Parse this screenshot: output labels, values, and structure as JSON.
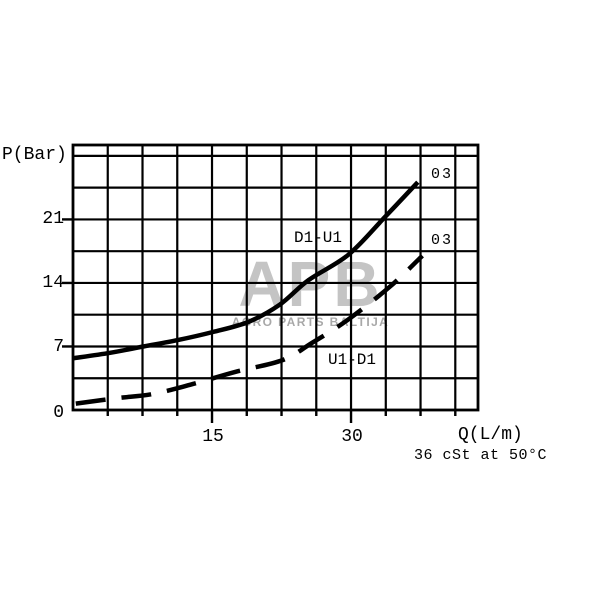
{
  "chart_data": {
    "type": "line",
    "title": "",
    "xlabel": "Q(L/m)",
    "xlabel_note": "36 cSt at 50°C",
    "ylabel": "P(Bar)",
    "xlim": [
      0,
      43.7
    ],
    "ylim": [
      0,
      29.2
    ],
    "x_gridline_step": 3.75,
    "y_gridline_step": 3.5,
    "x_major_ticks": [
      15,
      30
    ],
    "x_tick_labels": [
      "15",
      "30"
    ],
    "y_major_ticks": [
      0,
      7,
      14,
      21
    ],
    "y_tick_labels": [
      "0",
      "7",
      "14",
      "21"
    ],
    "grid": true,
    "legend_position": "inline-labels",
    "series": [
      {
        "name": "D1-U1",
        "code": "03",
        "style": "solid",
        "points": [
          [
            0,
            5.7
          ],
          [
            4.0,
            6.3
          ],
          [
            7.6,
            7.0
          ],
          [
            11.3,
            7.7
          ],
          [
            15.1,
            8.6
          ],
          [
            18.9,
            9.7
          ],
          [
            22.3,
            11.6
          ],
          [
            25.4,
            14.3
          ],
          [
            29.7,
            17.1
          ],
          [
            33.6,
            21.2
          ],
          [
            37.2,
            25.1
          ]
        ]
      },
      {
        "name": "U1-D1",
        "code": "03",
        "style": "dashed",
        "points": [
          [
            0.3,
            0.7
          ],
          [
            4.7,
            1.3
          ],
          [
            8.8,
            1.8
          ],
          [
            13.4,
            3.0
          ],
          [
            17.5,
            4.2
          ],
          [
            22.6,
            5.5
          ],
          [
            25.8,
            7.4
          ],
          [
            29.6,
            9.9
          ],
          [
            34.2,
            13.6
          ],
          [
            37.7,
            17.0
          ]
        ]
      }
    ]
  },
  "labels": {
    "ylabel": "P(Bar)",
    "xlabel": "Q(L/m)",
    "note": "36 cSt at 50°C",
    "ytick_0": "0",
    "ytick_7": "7",
    "ytick_14": "14",
    "ytick_21": "21",
    "xtick_15": "15",
    "xtick_30": "30",
    "series1_label": "D1-U1",
    "series1_code": "03",
    "series2_label": "U1-D1",
    "series2_code": "03"
  },
  "watermark": {
    "logo": "APB",
    "text": "AGRO PARTS BALTIJA",
    "logo_color": "#c4c4c4",
    "text_color": "#a8a8a8"
  },
  "colors": {
    "line": "#000000",
    "background": "#ffffff"
  }
}
